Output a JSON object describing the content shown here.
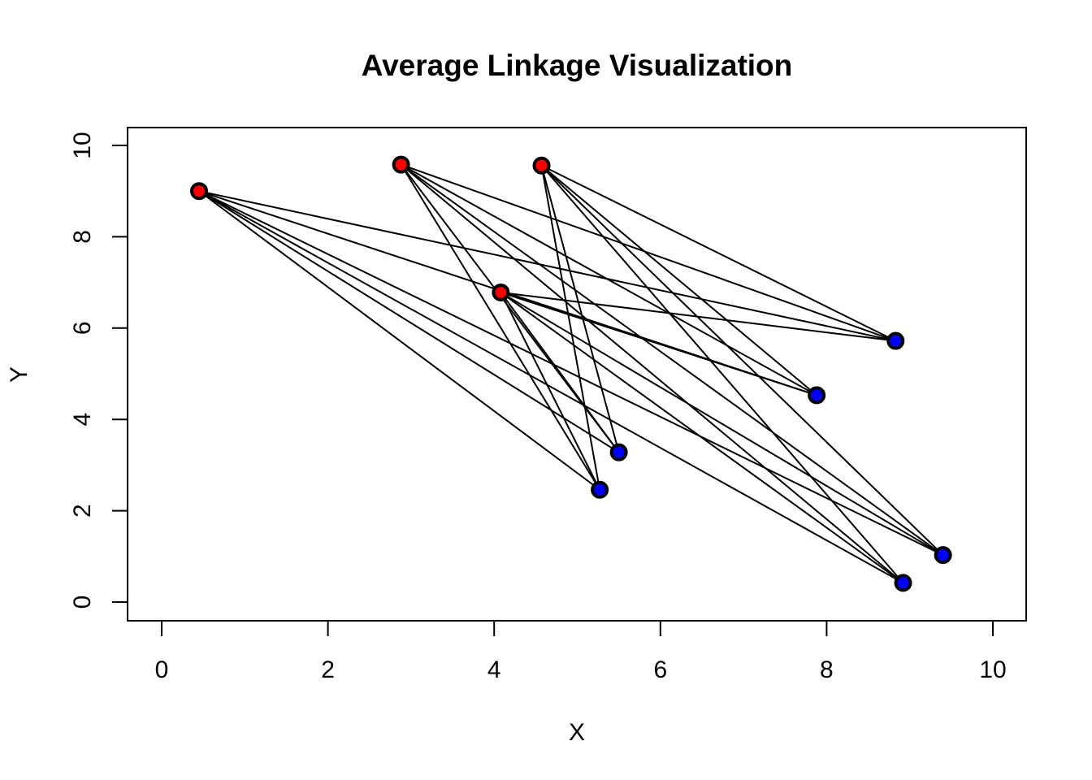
{
  "chart_data": {
    "type": "scatter",
    "title": "Average Linkage Visualization",
    "xlabel": "X",
    "ylabel": "Y",
    "xlim": [
      0,
      10
    ],
    "ylim": [
      0,
      10
    ],
    "x_ticks": [
      "0",
      "2",
      "4",
      "6",
      "8",
      "10"
    ],
    "y_ticks": [
      "0",
      "2",
      "4",
      "6",
      "8",
      "10"
    ],
    "grid": false,
    "legend": "none",
    "colors": {
      "cluster_a": "#ff0000",
      "cluster_b": "#0000ff",
      "lines": "#000000"
    },
    "series": [
      {
        "color": "#ff0000",
        "points": [
          {
            "x": 0.45,
            "y": 9.0
          },
          {
            "x": 2.88,
            "y": 9.58
          },
          {
            "x": 4.57,
            "y": 9.56
          },
          {
            "x": 4.08,
            "y": 6.78
          }
        ]
      },
      {
        "color": "#0000ff",
        "points": [
          {
            "x": 8.83,
            "y": 5.72
          },
          {
            "x": 7.88,
            "y": 4.53
          },
          {
            "x": 5.5,
            "y": 3.28
          },
          {
            "x": 5.27,
            "y": 2.46
          },
          {
            "x": 9.4,
            "y": 1.03
          },
          {
            "x": 8.92,
            "y": 0.42
          }
        ]
      }
    ],
    "connections": "every point of the red cluster linked to every point of the blue cluster"
  }
}
